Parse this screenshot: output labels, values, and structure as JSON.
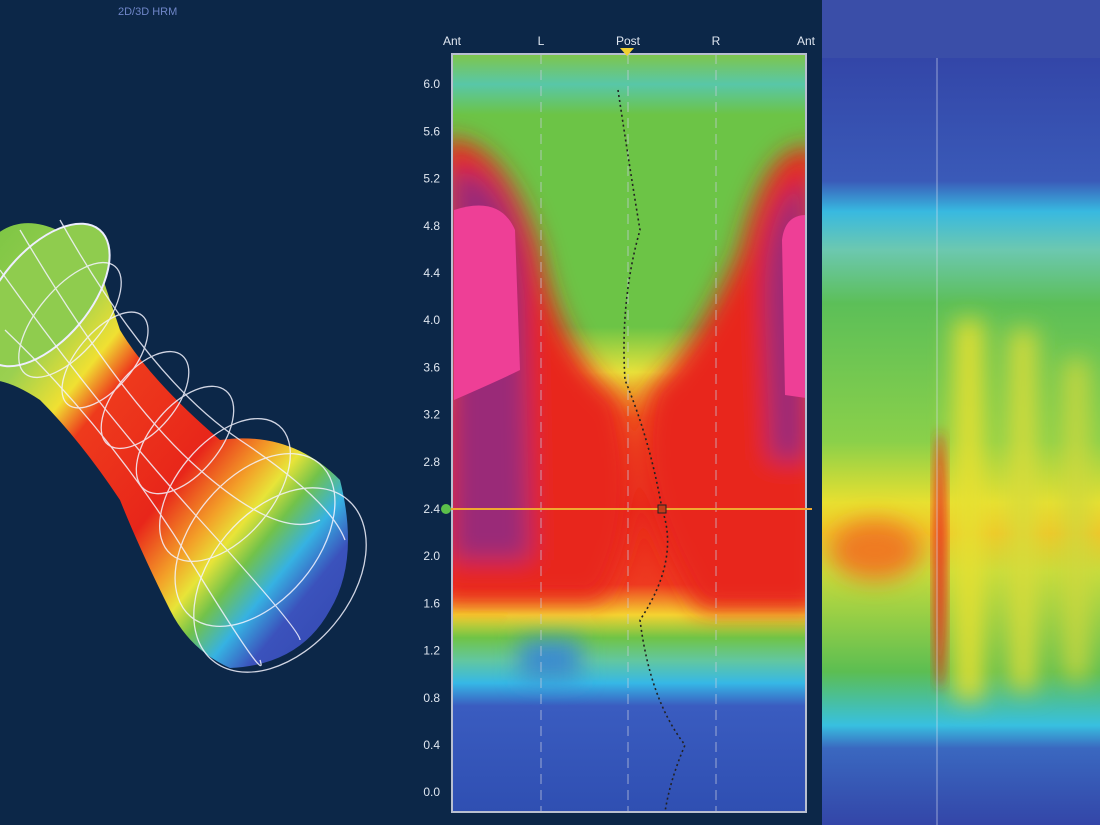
{
  "header": {
    "title": "2D/3D HRM"
  },
  "center_panel": {
    "top_labels": [
      "Ant",
      "L",
      "Post",
      "R",
      "Ant"
    ],
    "y_labels": [
      "6.0",
      "5.6",
      "5.2",
      "4.8",
      "4.4",
      "4.0",
      "3.6",
      "3.2",
      "2.8",
      "2.4",
      "2.0",
      "1.6",
      "1.2",
      "0.8",
      "0.4",
      "0.0"
    ]
  }
}
